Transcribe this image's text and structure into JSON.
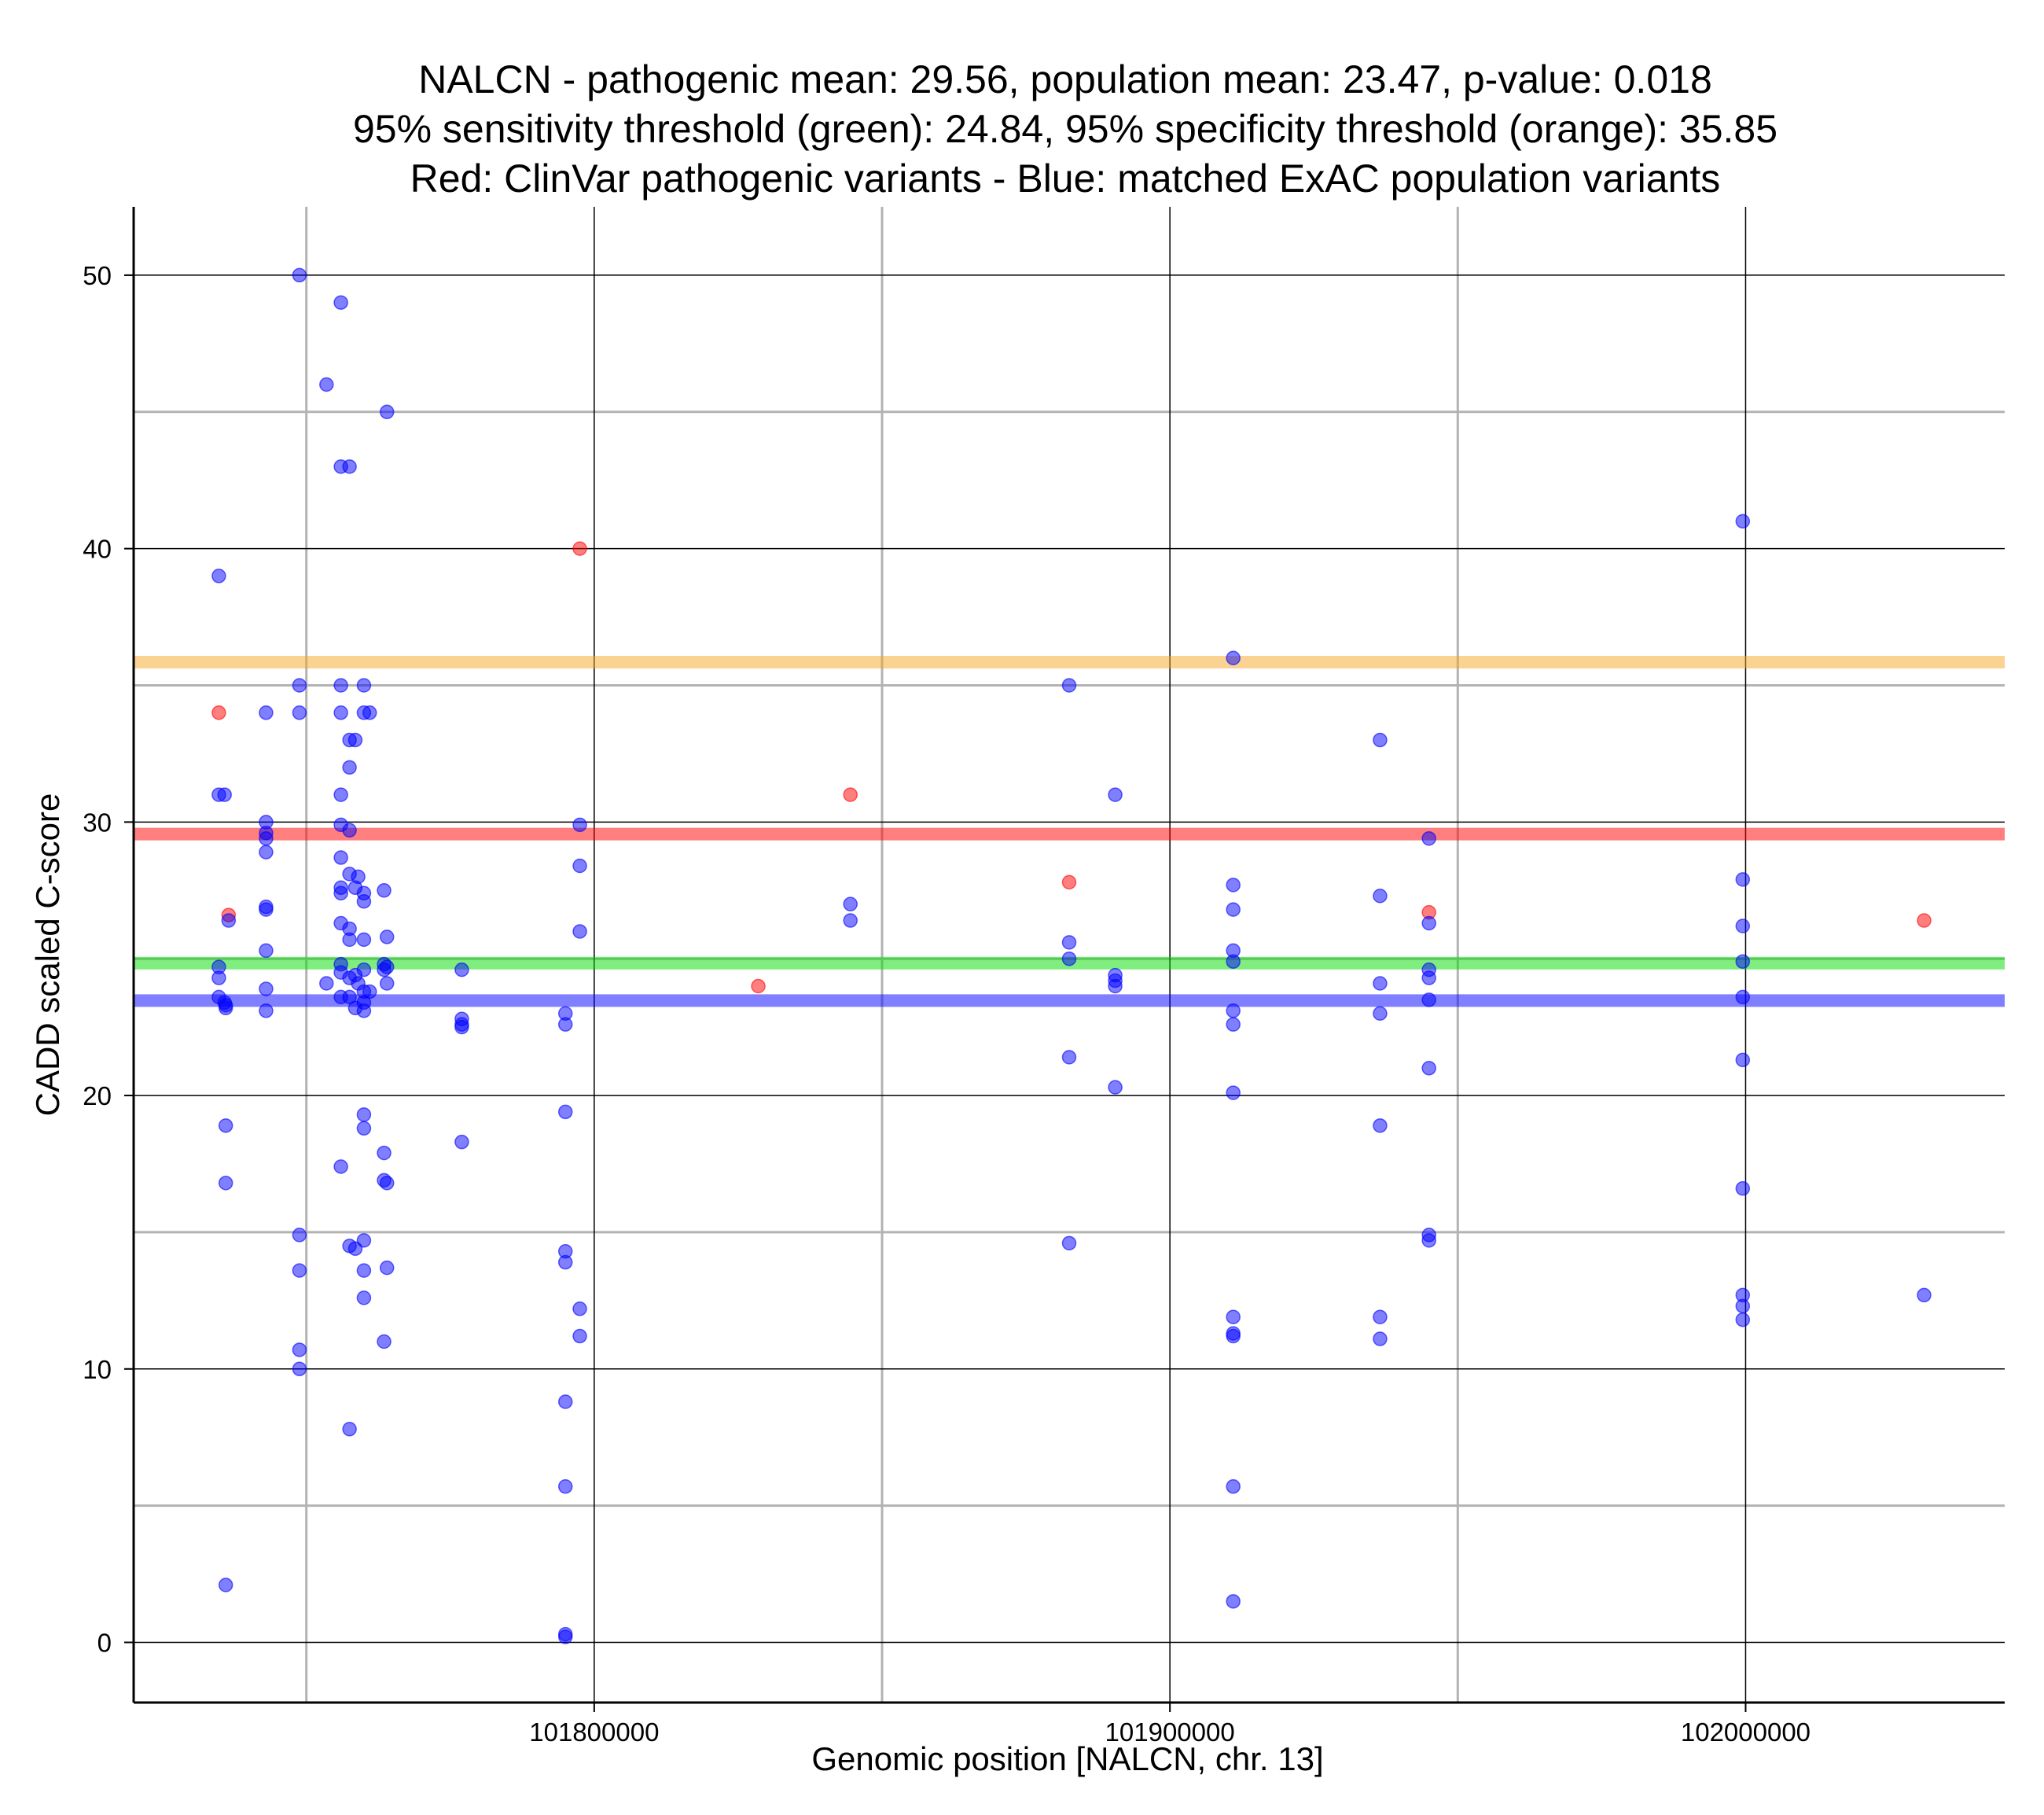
{
  "chart_data": {
    "type": "scatter",
    "title_lines": [
      "NALCN - pathogenic mean: 29.56, population mean: 23.47, p-value: 0.018",
      "95% sensitivity threshold (green): 24.84, 95% specificity threshold (orange): 35.85",
      "Red: ClinVar pathogenic variants - Blue: matched ExAC population variants"
    ],
    "xlabel": "Genomic position [NALCN, chr. 13]",
    "ylabel": "CADD scaled C-score",
    "xlim": [
      101720000,
      102045000
    ],
    "ylim": [
      -2.2,
      52.5
    ],
    "x_ticks": [
      101800000,
      101900000,
      102000000
    ],
    "x_tick_labels": [
      "101800000",
      "101900000",
      "102000000"
    ],
    "x_minor_ticks": [
      101750000,
      101850000,
      101950000
    ],
    "y_ticks": [
      0,
      10,
      20,
      30,
      40,
      50
    ],
    "y_tick_labels": [
      "0",
      "10",
      "20",
      "30",
      "40",
      "50"
    ],
    "y_minor_ticks": [
      5,
      15,
      25,
      35,
      45
    ],
    "hlines": [
      {
        "name": "specificity-threshold",
        "value": 35.85,
        "color": "#f5a623"
      },
      {
        "name": "pathogenic-mean",
        "value": 29.56,
        "color": "#ff0000"
      },
      {
        "name": "sensitivity-threshold",
        "value": 24.84,
        "color": "#00dd00"
      },
      {
        "name": "population-mean",
        "value": 23.47,
        "color": "#0000ff"
      }
    ],
    "series": [
      {
        "name": "ClinVar pathogenic variants",
        "color": "#ff0000",
        "points": [
          [
            101734800,
            34
          ],
          [
            101736500,
            26.6
          ],
          [
            101797500,
            40
          ],
          [
            101828500,
            24
          ],
          [
            101844500,
            31
          ],
          [
            101882500,
            27.8
          ],
          [
            101945000,
            26.7
          ],
          [
            102031000,
            26.4
          ]
        ]
      },
      {
        "name": "matched ExAC population variants",
        "color": "#0000ff",
        "points": [
          [
            101734800,
            39
          ],
          [
            101734800,
            31
          ],
          [
            101735800,
            31
          ],
          [
            101734800,
            24.7
          ],
          [
            101734800,
            24.3
          ],
          [
            101734800,
            23.6
          ],
          [
            101735800,
            23.4
          ],
          [
            101736000,
            23.2
          ],
          [
            101736000,
            23.3
          ],
          [
            101736000,
            18.9
          ],
          [
            101736000,
            16.8
          ],
          [
            101736000,
            2.1
          ],
          [
            101736500,
            26.4
          ],
          [
            101743000,
            34
          ],
          [
            101743000,
            30
          ],
          [
            101743000,
            29.6
          ],
          [
            101743000,
            29.4
          ],
          [
            101743000,
            28.9
          ],
          [
            101743000,
            26.9
          ],
          [
            101743000,
            26.8
          ],
          [
            101743000,
            25.3
          ],
          [
            101743000,
            23.9
          ],
          [
            101743000,
            23.1
          ],
          [
            101748800,
            50
          ],
          [
            101748800,
            35
          ],
          [
            101748800,
            34
          ],
          [
            101748800,
            14.9
          ],
          [
            101748800,
            13.6
          ],
          [
            101748800,
            10.7
          ],
          [
            101748800,
            10
          ],
          [
            101753500,
            46
          ],
          [
            101753500,
            24.1
          ],
          [
            101756000,
            49
          ],
          [
            101756000,
            43
          ],
          [
            101756000,
            35
          ],
          [
            101756000,
            34
          ],
          [
            101756000,
            31
          ],
          [
            101756000,
            29.9
          ],
          [
            101756000,
            28.7
          ],
          [
            101756000,
            27.6
          ],
          [
            101756000,
            27.4
          ],
          [
            101756000,
            26.3
          ],
          [
            101756000,
            24.8
          ],
          [
            101756000,
            24.5
          ],
          [
            101756000,
            23.6
          ],
          [
            101756000,
            17.4
          ],
          [
            101757500,
            43
          ],
          [
            101757500,
            33
          ],
          [
            101757500,
            32
          ],
          [
            101757500,
            29.7
          ],
          [
            101757500,
            28.1
          ],
          [
            101757500,
            26.1
          ],
          [
            101757500,
            25.7
          ],
          [
            101757500,
            24.3
          ],
          [
            101757500,
            23.6
          ],
          [
            101757500,
            14.5
          ],
          [
            101757500,
            7.8
          ],
          [
            101758500,
            33
          ],
          [
            101758500,
            27.6
          ],
          [
            101758500,
            24.4
          ],
          [
            101758500,
            23.2
          ],
          [
            101758500,
            14.4
          ],
          [
            101759000,
            28
          ],
          [
            101759000,
            24.1
          ],
          [
            101760000,
            35
          ],
          [
            101760000,
            34
          ],
          [
            101760000,
            27.4
          ],
          [
            101760000,
            27.1
          ],
          [
            101760000,
            25.7
          ],
          [
            101760000,
            24.6
          ],
          [
            101760000,
            23.8
          ],
          [
            101760000,
            23.4
          ],
          [
            101760000,
            23.1
          ],
          [
            101760000,
            19.3
          ],
          [
            101760000,
            18.8
          ],
          [
            101760000,
            14.7
          ],
          [
            101760000,
            13.6
          ],
          [
            101760000,
            12.6
          ],
          [
            101761000,
            34
          ],
          [
            101761000,
            23.8
          ],
          [
            101763500,
            27.5
          ],
          [
            101763500,
            24.8
          ],
          [
            101763500,
            24.6
          ],
          [
            101763500,
            17.9
          ],
          [
            101763500,
            16.9
          ],
          [
            101763500,
            11
          ],
          [
            101764000,
            45
          ],
          [
            101764000,
            25.8
          ],
          [
            101764000,
            24.7
          ],
          [
            101764000,
            24.1
          ],
          [
            101764000,
            16.8
          ],
          [
            101764000,
            13.7
          ],
          [
            101777000,
            24.6
          ],
          [
            101777000,
            22.8
          ],
          [
            101777000,
            22.6
          ],
          [
            101777000,
            22.5
          ],
          [
            101777000,
            18.3
          ],
          [
            101795000,
            23
          ],
          [
            101795000,
            22.6
          ],
          [
            101795000,
            19.4
          ],
          [
            101795000,
            14.3
          ],
          [
            101795000,
            13.9
          ],
          [
            101795000,
            8.8
          ],
          [
            101795000,
            5.7
          ],
          [
            101795000,
            0.3
          ],
          [
            101795000,
            0.2
          ],
          [
            101797500,
            29.9
          ],
          [
            101797500,
            28.4
          ],
          [
            101797500,
            26
          ],
          [
            101797500,
            12.2
          ],
          [
            101797500,
            11.2
          ],
          [
            101844500,
            27
          ],
          [
            101844500,
            26.4
          ],
          [
            101882500,
            35
          ],
          [
            101882500,
            25.6
          ],
          [
            101882500,
            25
          ],
          [
            101882500,
            21.4
          ],
          [
            101882500,
            14.6
          ],
          [
            101890500,
            31
          ],
          [
            101890500,
            24.4
          ],
          [
            101890500,
            24.2
          ],
          [
            101890500,
            24
          ],
          [
            101890500,
            20.3
          ],
          [
            101911000,
            36
          ],
          [
            101911000,
            27.7
          ],
          [
            101911000,
            26.8
          ],
          [
            101911000,
            25.3
          ],
          [
            101911000,
            24.9
          ],
          [
            101911000,
            23.1
          ],
          [
            101911000,
            22.6
          ],
          [
            101911000,
            20.1
          ],
          [
            101911000,
            11.9
          ],
          [
            101911000,
            11.3
          ],
          [
            101911000,
            11.2
          ],
          [
            101911000,
            5.7
          ],
          [
            101911000,
            1.5
          ],
          [
            101936500,
            33
          ],
          [
            101936500,
            27.3
          ],
          [
            101936500,
            24.1
          ],
          [
            101936500,
            23
          ],
          [
            101936500,
            18.9
          ],
          [
            101936500,
            11.9
          ],
          [
            101936500,
            11.1
          ],
          [
            101945000,
            29.4
          ],
          [
            101945000,
            26.3
          ],
          [
            101945000,
            24.6
          ],
          [
            101945000,
            24.3
          ],
          [
            101945000,
            23.5
          ],
          [
            101945000,
            21
          ],
          [
            101945000,
            14.9
          ],
          [
            101945000,
            14.7
          ],
          [
            101999500,
            41
          ],
          [
            101999500,
            27.9
          ],
          [
            101999500,
            26.2
          ],
          [
            101999500,
            24.9
          ],
          [
            101999500,
            23.6
          ],
          [
            101999500,
            21.3
          ],
          [
            101999500,
            16.6
          ],
          [
            101999500,
            12.7
          ],
          [
            101999500,
            12.3
          ],
          [
            101999500,
            11.8
          ],
          [
            102031000,
            12.7
          ]
        ]
      }
    ]
  }
}
